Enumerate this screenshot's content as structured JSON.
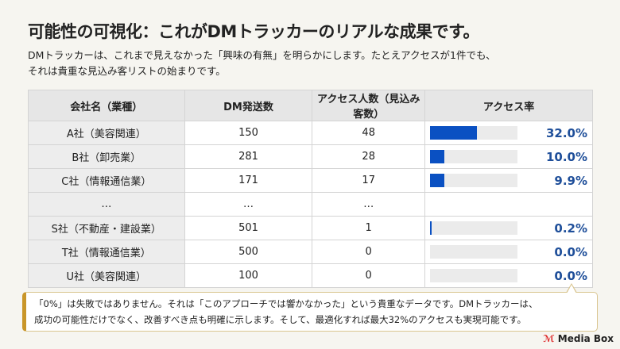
{
  "title": "可能性の可視化：これがDMトラッカーのリアルな成果です。",
  "subtitle_line1": "DMトラッカーは、これまで見えなかった「興味の有無」を明らかにします。たとえアクセスが1件でも、",
  "subtitle_line2": "それは貴重な見込み客リストの始まりです。",
  "table": {
    "headers": [
      "会社名（業種）",
      "DM発送数",
      "アクセス人数（見込み客数）",
      "アクセス率"
    ],
    "rows": [
      {
        "company": "A社（美容関連）",
        "sent": "150",
        "access": "48",
        "rate": "32.0%",
        "rate_value": 32.0
      },
      {
        "company": "B社（卸売業）",
        "sent": "281",
        "access": "28",
        "rate": "10.0%",
        "rate_value": 10.0
      },
      {
        "company": "C社（情報通信業）",
        "sent": "171",
        "access": "17",
        "rate": "9.9%",
        "rate_value": 9.9
      },
      {
        "company": "…",
        "sent": "…",
        "access": "…",
        "rate": "",
        "rate_value": null
      },
      {
        "company": "S社（不動産・建設業）",
        "sent": "501",
        "access": "1",
        "rate": "0.2%",
        "rate_value": 0.2
      },
      {
        "company": "T社（情報通信業）",
        "sent": "500",
        "access": "0",
        "rate": "0.0%",
        "rate_value": 0.0
      },
      {
        "company": "U社（美容関連）",
        "sent": "100",
        "access": "0",
        "rate": "0.0%",
        "rate_value": 0.0
      }
    ]
  },
  "callout_line1": "「0%」は失敗ではありません。それは「このアプローチでは響かなかった」という貴重なデータです。DMトラッカーは、",
  "callout_line2": "成功の可能性だけでなく、改善すべき点も明確に示します。そして、最適化すれば最大32%のアクセスも実現可能です。",
  "logo": "Media Box",
  "colors": {
    "bar": "#0a50c2",
    "rate_text": "#1f4f9a",
    "accent": "#c9962a"
  }
}
